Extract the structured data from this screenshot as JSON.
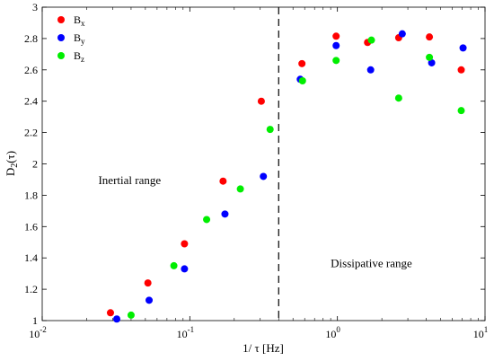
{
  "chart_data": {
    "type": "scatter",
    "xscale": "log",
    "xlim": [
      0.01,
      10
    ],
    "ylim": [
      1,
      3
    ],
    "x_ticks": [
      {
        "value": 0.01,
        "base": "10",
        "exp": "-2"
      },
      {
        "value": 0.1,
        "base": "10",
        "exp": "-1"
      },
      {
        "value": 1,
        "base": "10",
        "exp": "0"
      },
      {
        "value": 10,
        "base": "10",
        "exp": "1"
      }
    ],
    "y_ticks": [
      "1",
      "1.2",
      "1.4",
      "1.6",
      "1.8",
      "2",
      "2.2",
      "2.4",
      "2.6",
      "2.8",
      "3"
    ],
    "xlabel": "1/ τ [Hz]",
    "ylabel": {
      "main": "D",
      "sub": "2",
      "rest": "(τ)"
    },
    "legend": {
      "placement": "top-left",
      "entries": [
        {
          "base": "B",
          "sub": "x",
          "color": "#ff0000"
        },
        {
          "base": "B",
          "sub": "y",
          "color": "#0000ff"
        },
        {
          "base": "B",
          "sub": "z",
          "color": "#00ee00"
        }
      ]
    },
    "series": [
      {
        "color": "#ff0000",
        "points": [
          [
            0.029,
            1.05
          ],
          [
            0.052,
            1.24
          ],
          [
            0.092,
            1.49
          ],
          [
            0.168,
            1.89
          ],
          [
            0.305,
            2.4
          ],
          [
            0.575,
            2.64
          ],
          [
            0.98,
            2.815
          ],
          [
            1.6,
            2.775
          ],
          [
            2.6,
            2.805
          ],
          [
            4.2,
            2.81
          ],
          [
            6.9,
            2.6
          ]
        ]
      },
      {
        "color": "#0000ff",
        "points": [
          [
            0.032,
            1.01
          ],
          [
            0.053,
            1.13
          ],
          [
            0.092,
            1.33
          ],
          [
            0.173,
            1.68
          ],
          [
            0.315,
            1.92
          ],
          [
            0.56,
            2.54
          ],
          [
            0.98,
            2.755
          ],
          [
            1.68,
            2.6
          ],
          [
            2.75,
            2.83
          ],
          [
            4.35,
            2.645
          ],
          [
            7.1,
            2.74
          ]
        ]
      },
      {
        "color": "#00ee00",
        "points": [
          [
            0.04,
            1.035
          ],
          [
            0.078,
            1.35
          ],
          [
            0.13,
            1.645
          ],
          [
            0.22,
            1.84
          ],
          [
            0.35,
            2.22
          ],
          [
            0.58,
            2.53
          ],
          [
            0.98,
            2.66
          ],
          [
            1.7,
            2.79
          ],
          [
            2.6,
            2.42
          ],
          [
            4.2,
            2.68
          ],
          [
            6.9,
            2.34
          ]
        ]
      }
    ],
    "divider_x": 0.4,
    "annotations": [
      {
        "text": "Inertial range",
        "x": 0.024,
        "y": 1.87
      },
      {
        "text": "Dissipative range",
        "x": 0.9,
        "y": 1.34
      }
    ]
  }
}
